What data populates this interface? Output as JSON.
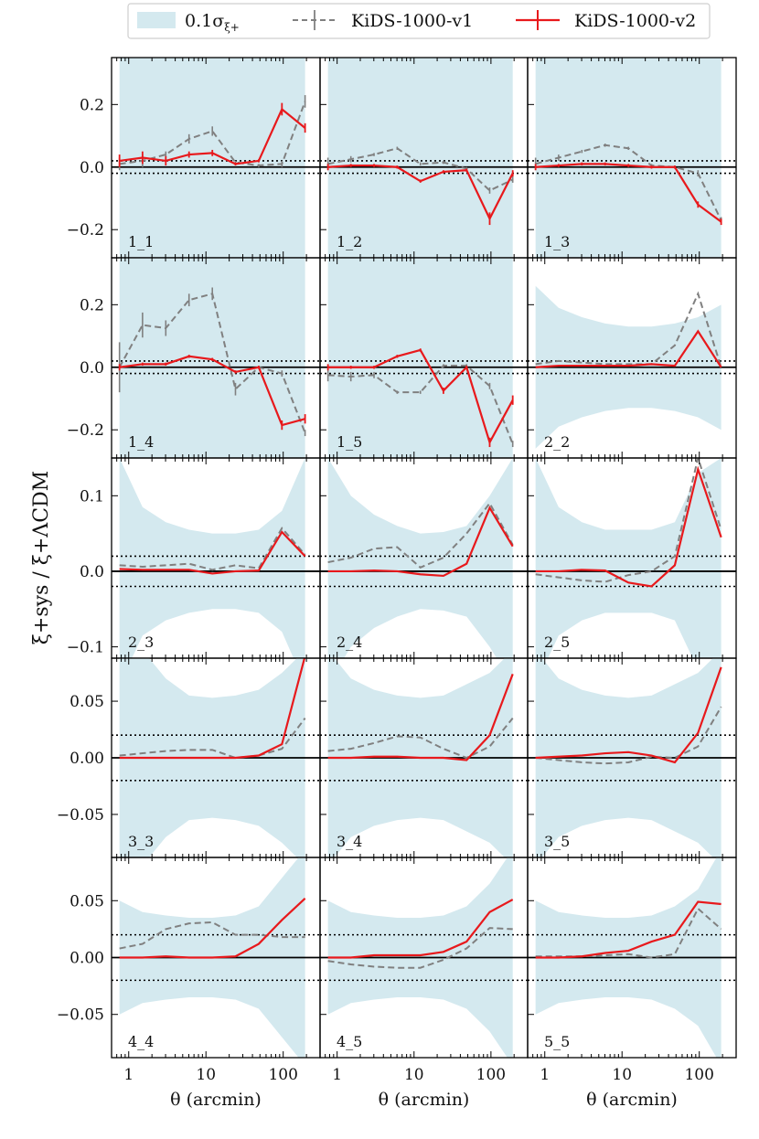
{
  "legend": {
    "band_label": "0.1σ",
    "band_sub": "ξ+",
    "v1_label": "KiDS-1000-v1",
    "v2_label": "KiDS-1000-v2"
  },
  "colors": {
    "band": "#d4e9ef",
    "v1": "#808080",
    "v2": "#e8191c",
    "zero": "#000000",
    "dotted": "#000000"
  },
  "axes": {
    "xlabel": "θ (arcmin)",
    "ylabel": "ξ+sys / ξ+ΛCDM",
    "x_ticks": [
      "1",
      "10",
      "100"
    ]
  },
  "chart_data": {
    "type": "line",
    "x": [
      0.76,
      1.51,
      3.02,
      6.04,
      12.1,
      24.1,
      48.2,
      96.3,
      192
    ],
    "x_scale": "log",
    "xlim": [
      0.6,
      300
    ],
    "reference_lines": [
      0.02,
      -0.02
    ],
    "rows": [
      {
        "ylim": [
          -0.29,
          0.35
        ],
        "yticks": [
          0.2,
          0.0,
          -0.2
        ],
        "ytick_labels": [
          "0.2",
          "0.0",
          "−0.2"
        ]
      },
      {
        "ylim": [
          -0.29,
          0.35
        ],
        "yticks": [
          0.2,
          0.0,
          -0.2
        ],
        "ytick_labels": [
          "0.2",
          "0.0",
          "−0.2"
        ]
      },
      {
        "ylim": [
          -0.115,
          0.15
        ],
        "yticks": [
          0.1,
          0.0,
          -0.1
        ],
        "ytick_labels": [
          "0.1",
          "0.0",
          "−0.1"
        ]
      },
      {
        "ylim": [
          -0.088,
          0.088
        ],
        "yticks": [
          0.05,
          0.0,
          -0.05
        ],
        "ytick_labels": [
          "0.05",
          "0.00",
          "−0.05"
        ]
      },
      {
        "ylim": [
          -0.088,
          0.088
        ],
        "yticks": [
          0.05,
          0.0,
          -0.05
        ],
        "ytick_labels": [
          "0.05",
          "0.00",
          "−0.05"
        ]
      }
    ],
    "panels": [
      {
        "label": "1_1",
        "band": [
          0.45,
          0.45,
          0.45,
          0.45,
          0.45,
          0.45,
          0.45,
          0.45,
          0.45
        ],
        "v1": [
          0.01,
          0.02,
          0.04,
          0.09,
          0.115,
          0.015,
          0.005,
          0.01,
          0.21
        ],
        "v1_err": [
          0.02,
          0.02,
          0.01,
          0.015,
          0.015,
          0.005,
          0.005,
          0.01,
          0.02
        ],
        "v2": [
          0.02,
          0.03,
          0.02,
          0.04,
          0.045,
          0.01,
          0.02,
          0.185,
          0.125
        ],
        "v2_err": [
          0.02,
          0.02,
          0.015,
          0.01,
          0.01,
          0.005,
          0.005,
          0.02,
          0.015
        ]
      },
      {
        "label": "1_2",
        "band": [
          0.45,
          0.45,
          0.45,
          0.45,
          0.45,
          0.45,
          0.42,
          0.38,
          0.45
        ],
        "v1": [
          0.01,
          0.025,
          0.04,
          0.06,
          0.01,
          0.015,
          -0.005,
          -0.075,
          -0.04
        ],
        "v1_err": [
          0.02,
          0.01,
          0.005,
          0.005,
          0.005,
          0.005,
          0.005,
          0.01,
          0.01
        ],
        "v2": [
          0.0,
          0.005,
          0.005,
          0.0,
          -0.045,
          -0.015,
          -0.01,
          -0.165,
          -0.02
        ],
        "v2_err": [
          0.01,
          0.005,
          0.005,
          0.005,
          0.005,
          0.005,
          0.005,
          0.02,
          0.01
        ]
      },
      {
        "label": "1_3",
        "band": [
          0.45,
          0.45,
          0.45,
          0.45,
          0.45,
          0.45,
          0.45,
          0.45,
          0.45
        ],
        "v1": [
          0.01,
          0.03,
          0.05,
          0.07,
          0.06,
          0.005,
          0.0,
          -0.02,
          -0.17
        ],
        "v1_err": [
          0.02,
          0.01,
          0.005,
          0.005,
          0.005,
          0.005,
          0.005,
          0.01,
          0.01
        ],
        "v2": [
          0.0,
          0.005,
          0.01,
          0.01,
          0.005,
          0.0,
          0.0,
          -0.12,
          -0.175
        ],
        "v2_err": [
          0.01,
          0.005,
          0.005,
          0.005,
          0.005,
          0.005,
          0.005,
          0.01,
          0.01
        ]
      },
      {
        "label": "1_4",
        "band": [
          0.45,
          0.45,
          0.45,
          0.45,
          0.45,
          0.45,
          0.45,
          0.45,
          0.45
        ],
        "v1": [
          0.0,
          0.135,
          0.125,
          0.215,
          0.235,
          -0.07,
          0.0,
          -0.02,
          -0.21
        ],
        "v1_err": [
          0.08,
          0.04,
          0.025,
          0.02,
          0.02,
          0.02,
          0.005,
          0.01,
          0.01
        ],
        "v2": [
          0.0,
          0.01,
          0.01,
          0.035,
          0.025,
          -0.015,
          0.0,
          -0.185,
          -0.165
        ],
        "v2_err": [
          0.01,
          0.005,
          0.005,
          0.005,
          0.005,
          0.005,
          0.005,
          0.015,
          0.015
        ]
      },
      {
        "label": "1_5",
        "band": [
          0.45,
          0.45,
          0.45,
          0.45,
          0.45,
          0.45,
          0.45,
          0.45,
          0.45
        ],
        "v1": [
          -0.025,
          -0.03,
          -0.025,
          -0.08,
          -0.08,
          0.005,
          0.005,
          -0.06,
          -0.245
        ],
        "v1_err": [
          0.02,
          0.015,
          0.01,
          0.005,
          0.005,
          0.005,
          0.005,
          0.01,
          0.01
        ],
        "v2": [
          0.0,
          0.0,
          0.0,
          0.035,
          0.055,
          -0.075,
          0.0,
          -0.24,
          -0.105
        ],
        "v2_err": [
          0.01,
          0.005,
          0.005,
          0.005,
          0.005,
          0.01,
          0.005,
          0.015,
          0.015
        ]
      },
      {
        "label": "2_2",
        "band": [
          0.26,
          0.19,
          0.16,
          0.14,
          0.13,
          0.13,
          0.14,
          0.16,
          0.2
        ],
        "v1": [
          0.01,
          0.02,
          0.015,
          0.01,
          0.01,
          0.01,
          0.07,
          0.235,
          0.0
        ],
        "v2": [
          0.0,
          0.005,
          0.005,
          0.005,
          0.005,
          0.01,
          0.005,
          0.115,
          0.0
        ]
      },
      {
        "label": "2_3",
        "band": [
          0.15,
          0.085,
          0.065,
          0.055,
          0.05,
          0.05,
          0.055,
          0.08,
          0.15
        ],
        "v1": [
          0.008,
          0.006,
          0.008,
          0.01,
          0.002,
          0.008,
          0.004,
          0.057,
          0.022
        ],
        "v2": [
          0.003,
          0.002,
          0.002,
          0.002,
          -0.003,
          0.0,
          0.001,
          0.052,
          0.02
        ]
      },
      {
        "label": "2_4",
        "band": [
          0.15,
          0.1,
          0.075,
          0.06,
          0.05,
          0.052,
          0.06,
          0.1,
          0.15
        ],
        "v1": [
          0.012,
          0.018,
          0.03,
          0.032,
          0.005,
          0.018,
          0.05,
          0.09,
          0.035
        ],
        "v2": [
          0.0,
          0.0,
          0.001,
          0.0,
          -0.004,
          -0.006,
          0.01,
          0.084,
          0.033
        ]
      },
      {
        "label": "2_5",
        "band": [
          0.15,
          0.085,
          0.065,
          0.055,
          0.055,
          0.055,
          0.065,
          0.13,
          0.15
        ],
        "v1": [
          -0.004,
          -0.008,
          -0.012,
          -0.014,
          -0.005,
          0.0,
          0.02,
          0.15,
          0.055
        ],
        "v2": [
          0.0,
          0.0,
          0.002,
          0.001,
          -0.015,
          -0.02,
          0.008,
          0.135,
          0.045
        ]
      },
      {
        "label": "3_3",
        "band": [
          0.095,
          0.095,
          0.07,
          0.055,
          0.053,
          0.055,
          0.06,
          0.075,
          0.095
        ],
        "v1": [
          0.002,
          0.004,
          0.006,
          0.007,
          0.007,
          0.0,
          0.002,
          0.008,
          0.035
        ],
        "v2": [
          0.0,
          0.0,
          0.0,
          0.0,
          0.0,
          0.0,
          0.002,
          0.012,
          0.09
        ]
      },
      {
        "label": "3_4",
        "band": [
          0.095,
          0.07,
          0.06,
          0.055,
          0.053,
          0.055,
          0.065,
          0.075,
          0.095
        ],
        "v1": [
          0.006,
          0.008,
          0.013,
          0.019,
          0.018,
          0.008,
          0.0,
          0.01,
          0.035
        ],
        "v2": [
          0.0,
          0.0,
          0.001,
          0.001,
          0.0,
          0.0,
          -0.002,
          0.02,
          0.074
        ]
      },
      {
        "label": "3_5",
        "band": [
          0.095,
          0.07,
          0.06,
          0.055,
          0.053,
          0.055,
          0.065,
          0.075,
          0.095
        ],
        "v1": [
          0.0,
          -0.002,
          -0.004,
          -0.005,
          -0.004,
          0.001,
          0.0,
          0.01,
          0.045
        ],
        "v2": [
          0.0,
          0.001,
          0.002,
          0.004,
          0.005,
          0.002,
          -0.004,
          0.022,
          0.08
        ]
      },
      {
        "label": "4_4",
        "band": [
          0.05,
          0.04,
          0.037,
          0.035,
          0.035,
          0.037,
          0.045,
          0.07,
          0.095
        ],
        "v1": [
          0.008,
          0.012,
          0.025,
          0.03,
          0.031,
          0.02,
          0.02,
          0.018,
          0.018
        ],
        "v2": [
          0.0,
          0.0,
          0.001,
          0.0,
          0.0,
          0.001,
          0.012,
          0.033,
          0.052
        ]
      },
      {
        "label": "4_5",
        "band": [
          0.05,
          0.04,
          0.037,
          0.035,
          0.035,
          0.037,
          0.045,
          0.065,
          0.095
        ],
        "v1": [
          -0.003,
          -0.006,
          -0.008,
          -0.009,
          -0.009,
          -0.002,
          0.008,
          0.026,
          0.025
        ],
        "v2": [
          0.0,
          0.0,
          0.002,
          0.002,
          0.002,
          0.005,
          0.014,
          0.04,
          0.051
        ]
      },
      {
        "label": "5_5",
        "band": [
          0.05,
          0.04,
          0.037,
          0.035,
          0.035,
          0.037,
          0.045,
          0.06,
          0.095
        ],
        "v1": [
          0.001,
          0.001,
          0.001,
          0.002,
          0.003,
          0.0,
          0.003,
          0.043,
          0.025
        ],
        "v2": [
          0.0,
          0.0,
          0.001,
          0.004,
          0.006,
          0.014,
          0.02,
          0.049,
          0.047
        ]
      }
    ]
  }
}
